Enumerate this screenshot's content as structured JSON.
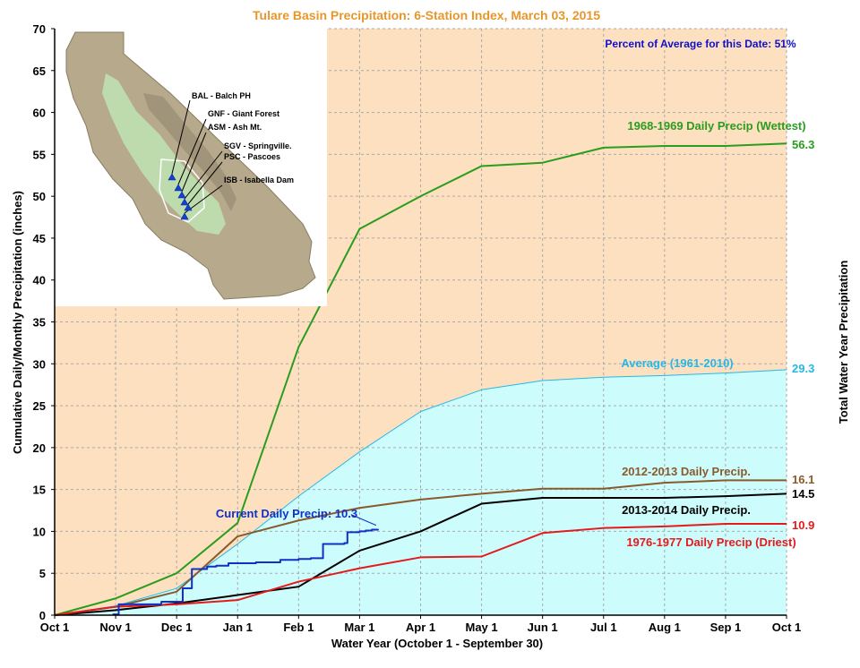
{
  "chart_data": {
    "type": "line",
    "title": "Tulare Basin Precipitation: 6-Station Index, March 03, 2015",
    "xlabel": "Water Year (October 1 - September 30)",
    "ylabel": "Cumulative Daily/Monthly Precipitation (inches)",
    "ylabel_right": "Total Water Year Precipitation",
    "xlim": [
      0,
      12
    ],
    "ylim": [
      0,
      70
    ],
    "x_ticks": [
      0,
      1,
      2,
      3,
      4,
      5,
      6,
      7,
      8,
      9,
      10,
      11,
      12
    ],
    "x_tick_labels": [
      "Oct 1",
      "Nov 1",
      "Dec 1",
      "Jan 1",
      "Feb 1",
      "Mar 1",
      "Apr 1",
      "May 1",
      "Jun 1",
      "Jul 1",
      "Aug 1",
      "Sep 1",
      "Oct 1"
    ],
    "y_ticks": [
      0,
      5,
      10,
      15,
      20,
      25,
      30,
      35,
      40,
      45,
      50,
      55,
      60,
      65,
      70
    ],
    "grid": true,
    "percent_note": "Percent of Average for this Date: 51%",
    "background_color": "#fde0c0",
    "series": [
      {
        "name": "Average (1961-2010)",
        "kind": "area",
        "color": "#26b8e6",
        "fill": "#ccfcfc",
        "end_label": "29.3",
        "x": [
          0,
          1,
          2,
          3,
          4,
          5,
          6,
          7,
          8,
          9,
          10,
          11,
          12
        ],
        "y": [
          0,
          1.1,
          3.2,
          8.5,
          14.2,
          19.5,
          24.3,
          26.9,
          28.0,
          28.4,
          28.6,
          28.9,
          29.3
        ]
      },
      {
        "name": "1968-1969 Daily Precip (Wettest)",
        "kind": "line",
        "color": "#2a9d1f",
        "end_label": "56.3",
        "x": [
          0,
          1,
          2,
          3,
          4,
          5,
          6,
          7,
          8,
          9,
          10,
          11,
          12
        ],
        "y": [
          0,
          2.0,
          5.0,
          11.0,
          32.0,
          46.1,
          50.0,
          53.6,
          54.0,
          55.8,
          56.0,
          56.0,
          56.3
        ]
      },
      {
        "name": "2012-2013 Daily Precip.",
        "kind": "line",
        "color": "#8b5a2b",
        "end_label": "16.1",
        "x": [
          0,
          1,
          2,
          3,
          4,
          5,
          6,
          7,
          8,
          9,
          10,
          11,
          12
        ],
        "y": [
          0,
          1.0,
          2.8,
          9.4,
          11.3,
          12.8,
          13.8,
          14.5,
          15.1,
          15.1,
          15.8,
          16.1,
          16.1
        ]
      },
      {
        "name": "2013-2014 Daily Precip.",
        "kind": "line",
        "color": "#000000",
        "end_label": "14.5",
        "x": [
          0,
          1,
          2,
          3,
          4,
          5,
          6,
          7,
          8,
          9,
          10,
          11,
          12
        ],
        "y": [
          0,
          0.6,
          1.4,
          2.4,
          3.4,
          7.7,
          10.0,
          13.3,
          14.0,
          14.0,
          14.0,
          14.2,
          14.5
        ]
      },
      {
        "name": "1976-1977 Daily Precip (Driest)",
        "kind": "line",
        "color": "#e41a1c",
        "end_label": "10.9",
        "x": [
          0,
          1,
          2,
          3,
          4,
          5,
          6,
          7,
          8,
          9,
          10,
          11,
          12
        ],
        "y": [
          0,
          1.0,
          1.3,
          1.8,
          4.0,
          5.6,
          6.9,
          7.0,
          9.8,
          10.4,
          10.6,
          10.9,
          10.9
        ]
      },
      {
        "name": "Current Daily Precip: 10.3",
        "kind": "step",
        "color": "#1030c8",
        "x": [
          0.95,
          1.05,
          1.3,
          1.5,
          1.7,
          1.75,
          1.95,
          2.05,
          2.1,
          2.25,
          2.5,
          2.65,
          2.85,
          3.0,
          3.3,
          3.5,
          3.65,
          3.7,
          4.0,
          4.2,
          4.35,
          4.4,
          4.75,
          4.8,
          5.0,
          5.1,
          5.2,
          5.3
        ],
        "y": [
          0.1,
          1.3,
          1.3,
          1.3,
          1.3,
          1.6,
          1.6,
          1.6,
          3.2,
          5.5,
          5.8,
          5.9,
          6.2,
          6.2,
          6.3,
          6.3,
          6.3,
          6.6,
          6.7,
          6.8,
          6.8,
          8.5,
          8.6,
          9.9,
          10.0,
          10.1,
          10.2,
          10.3
        ]
      }
    ],
    "map_inset": {
      "stations": [
        "BAL - Balch PH",
        "GNF - Giant Forest",
        "ASM - Ash Mt.",
        "SGV - Springville.",
        "PSC - Pascoes",
        "ISB - Isabella Dam"
      ]
    }
  }
}
